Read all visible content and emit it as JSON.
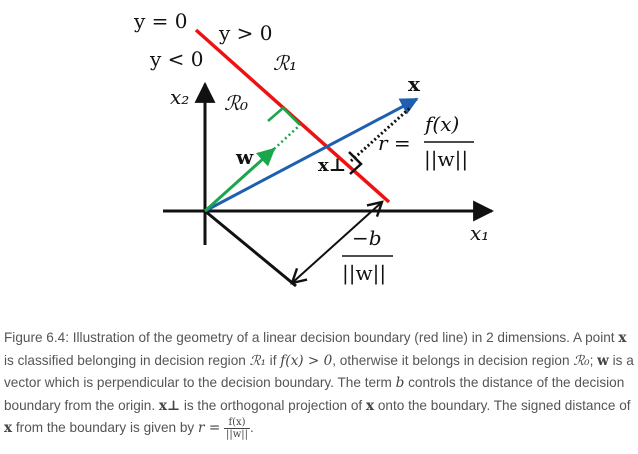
{
  "diagram": {
    "labels": {
      "y_eq_0": "y = 0",
      "y_gt_0": "y > 0",
      "y_lt_0": "y < 0",
      "region_1": "ℛ₁",
      "region_0": "ℛ₀",
      "x2_axis": "x₂",
      "x1_axis": "x₁",
      "x_vec": "x",
      "w_vec": "w",
      "x_perp": "x⊥",
      "r_eq": "r =",
      "r_num": "f(x)",
      "r_den": "||w||",
      "b_num": "−b",
      "b_den": "||w||"
    },
    "colors": {
      "boundary": "#ee1111",
      "x_vector": "#1f5fb0",
      "w_vector": "#1aa64a",
      "axes": "#111111"
    }
  },
  "caption": {
    "p1": "Figure 6.4: Illustration of the geometry of a linear decision boundary (red line) in 2 dimensions. A point ",
    "x1": "x",
    "p2": " is classified belonging in decision region ",
    "r1": "ℛ₁",
    "p3": " if ",
    "cond": "f(x) > 0",
    "p4": ", otherwise it belongs in decision region ",
    "r0": "ℛ₀",
    "p5": "; ",
    "w": "w",
    "p6": " is a vector which is perpendicular to the decision boundary. The term ",
    "b": "b",
    "p7": " controls the distance of the decision boundary from the origin. ",
    "xperp": "x⊥",
    "p8": " is the orthogonal projection of ",
    "x2": "x",
    "p9": " onto the boundary. The signed distance of ",
    "x3": "x",
    "p10": " from the boundary is given by ",
    "req": "r =",
    "fnum": "f(x)",
    "fden": "||w||",
    "p11": "."
  }
}
